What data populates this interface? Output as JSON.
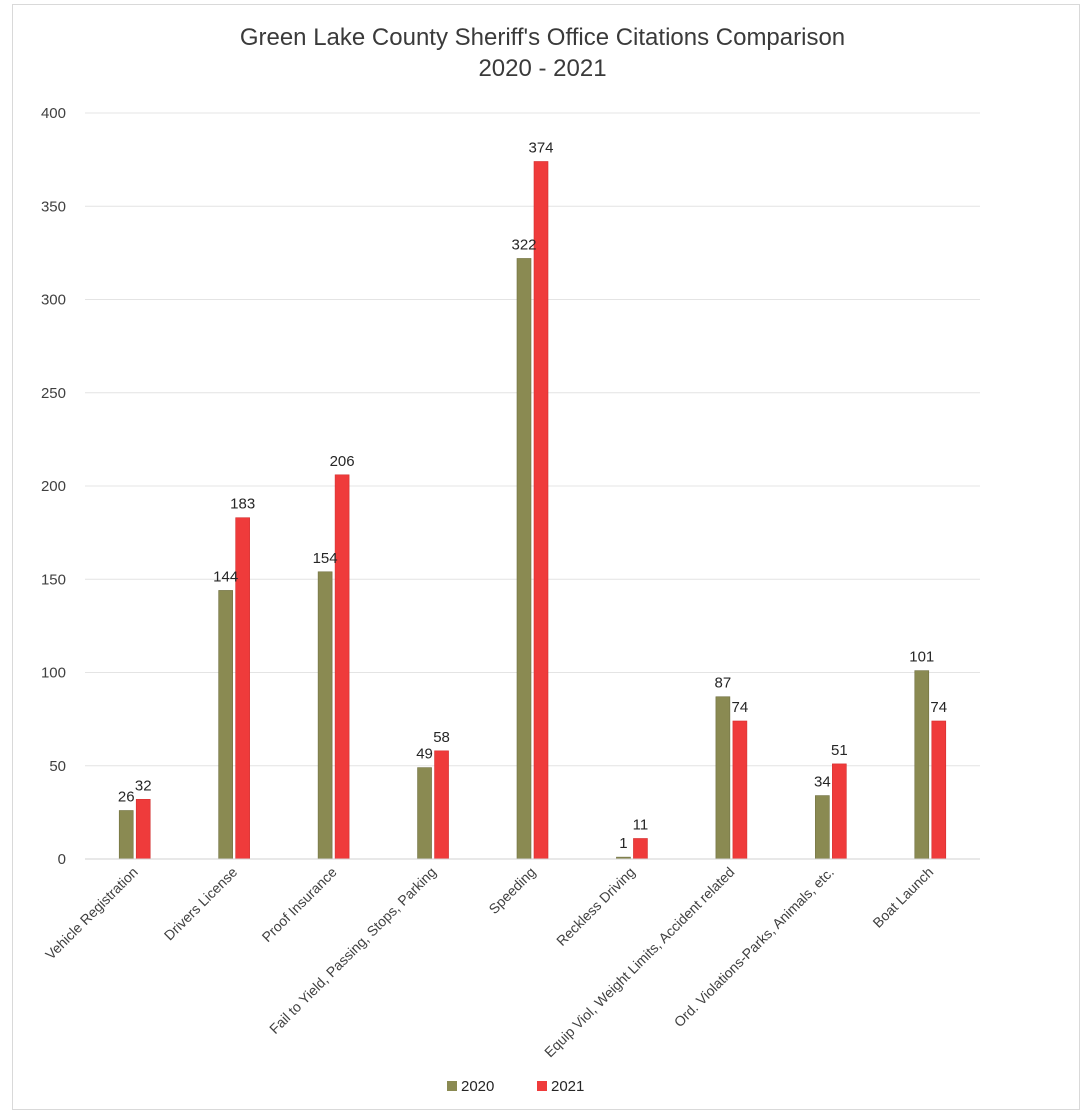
{
  "chart_data": {
    "type": "bar",
    "title": "Green Lake County Sheriff's Office Citations Comparison",
    "subtitle": "2020 - 2021",
    "categories": [
      "Vehicle Registration",
      "Drivers License",
      "Proof Insurance",
      "Fail to Yield, Passing, Stops, Parking",
      "Speeding",
      "Reckless Driving",
      "Equip Viol, Weight Limits, Accident related",
      "Ord. Violations-Parks, Animals, etc.",
      "Boat Launch"
    ],
    "series": [
      {
        "name": "2020",
        "color": "#8a8a52",
        "values": [
          26,
          144,
          154,
          49,
          322,
          1,
          87,
          34,
          101
        ]
      },
      {
        "name": "2021",
        "color": "#ef3b3b",
        "values": [
          32,
          183,
          206,
          58,
          374,
          11,
          74,
          51,
          74
        ]
      }
    ],
    "ylim": [
      0,
      400
    ],
    "yticks": [
      0,
      50,
      100,
      150,
      200,
      250,
      300,
      350,
      400
    ],
    "grid": true,
    "data_labels": true,
    "legend": "bottom"
  }
}
